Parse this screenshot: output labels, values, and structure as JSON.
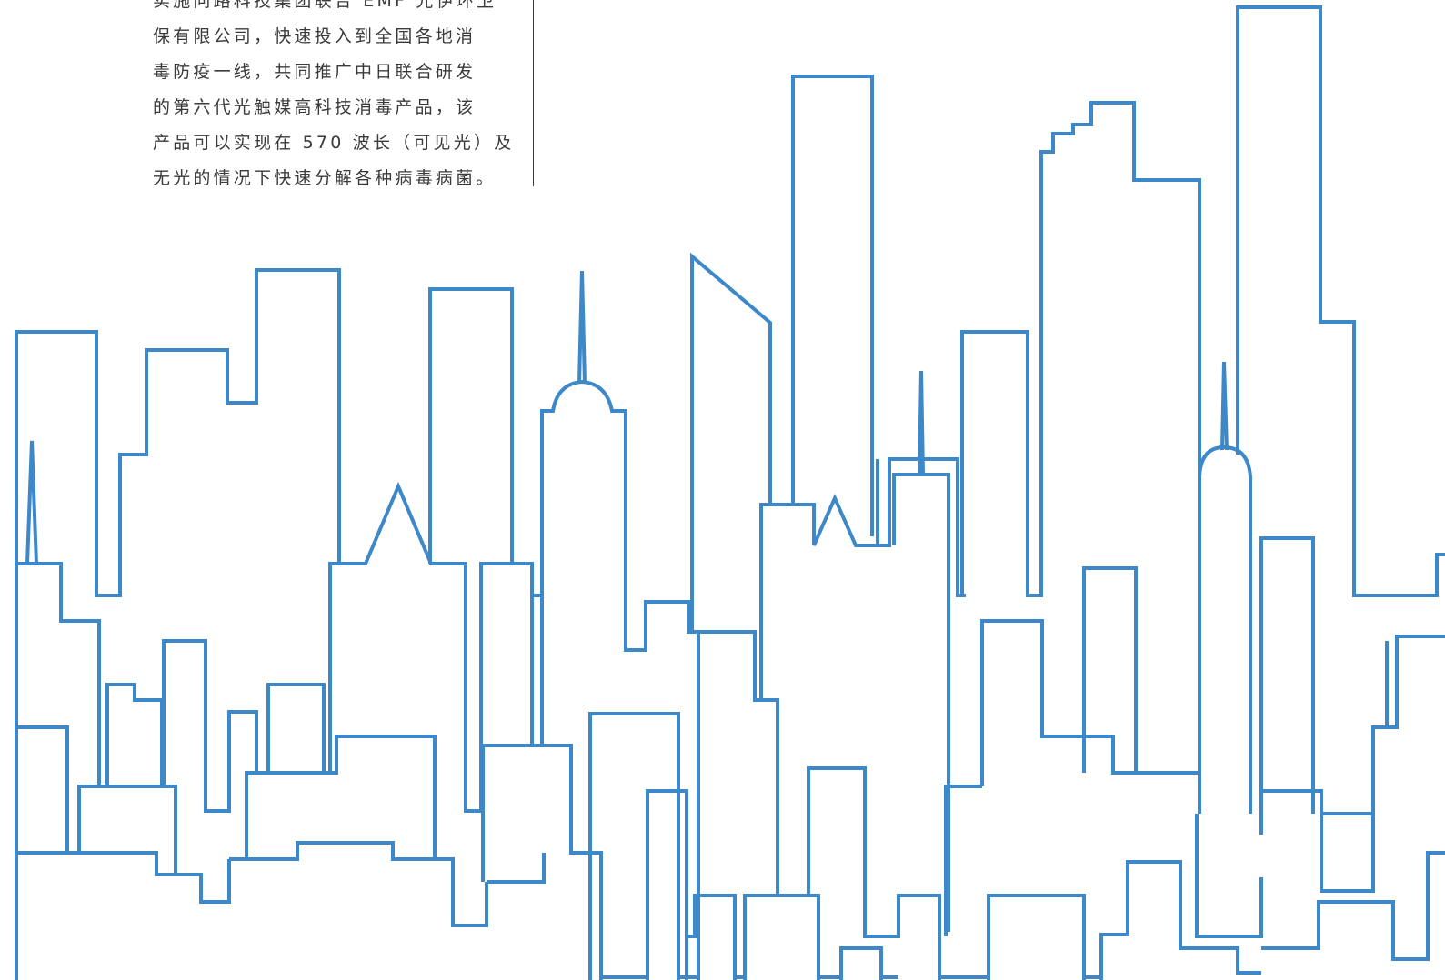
{
  "article": {
    "lines": [
      "实施问路科技集团联合 EMF 光伊环卫",
      "保有限公司，快速投入到全国各地消",
      "毒防疫一线，共同推广中日联合研发",
      "的第六代光触媒高科技消毒产品，该",
      "产品可以实现在 570 波长（可见光）及",
      "无光的情况下快速分解各种病毒病菌。"
    ]
  },
  "illustration": {
    "name": "city-skyline-outline",
    "stroke_color": "#3c88c8"
  }
}
